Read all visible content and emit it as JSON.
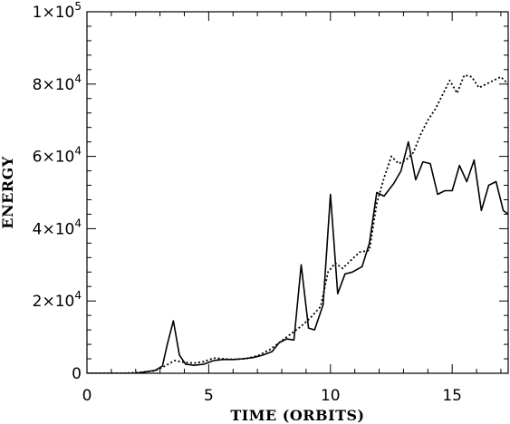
{
  "chart_data": {
    "type": "line",
    "title": "",
    "xlabel": "TIME (ORBITS)",
    "ylabel": "ENERGY",
    "xlim": [
      0,
      17.3
    ],
    "ylim": [
      0,
      100000
    ],
    "x_ticks": [
      0,
      5,
      10,
      15
    ],
    "x_tick_labels": [
      "0",
      "5",
      "10",
      "15"
    ],
    "y_ticks": [
      0,
      20000,
      40000,
      60000,
      80000,
      100000
    ],
    "y_tick_labels": [
      {
        "mantissa": "0",
        "exponent": ""
      },
      {
        "mantissa": "2×10",
        "exponent": "4"
      },
      {
        "mantissa": "4×10",
        "exponent": "4"
      },
      {
        "mantissa": "6×10",
        "exponent": "4"
      },
      {
        "mantissa": "8×10",
        "exponent": "4"
      },
      {
        "mantissa": "1×10",
        "exponent": "5"
      }
    ],
    "grid": false,
    "legend": "none",
    "series": [
      {
        "style": "solid",
        "color": "#000000",
        "points": [
          [
            0.0,
            0
          ],
          [
            1.0,
            0
          ],
          [
            2.0,
            0
          ],
          [
            2.5,
            500
          ],
          [
            2.8,
            800
          ],
          [
            3.1,
            2000
          ],
          [
            3.3,
            8000
          ],
          [
            3.55,
            14500
          ],
          [
            3.8,
            5000
          ],
          [
            4.05,
            2500
          ],
          [
            4.4,
            2200
          ],
          [
            4.8,
            2500
          ],
          [
            5.2,
            3500
          ],
          [
            5.6,
            3800
          ],
          [
            6.0,
            3800
          ],
          [
            6.4,
            4000
          ],
          [
            6.8,
            4300
          ],
          [
            7.2,
            5000
          ],
          [
            7.6,
            6000
          ],
          [
            7.9,
            8500
          ],
          [
            8.2,
            9500
          ],
          [
            8.5,
            9200
          ],
          [
            8.8,
            30000
          ],
          [
            9.1,
            12500
          ],
          [
            9.35,
            12000
          ],
          [
            9.7,
            19000
          ],
          [
            10.0,
            49500
          ],
          [
            10.3,
            22000
          ],
          [
            10.6,
            27500
          ],
          [
            10.9,
            28000
          ],
          [
            11.3,
            29500
          ],
          [
            11.6,
            36000
          ],
          [
            11.9,
            50000
          ],
          [
            12.2,
            49000
          ],
          [
            12.6,
            52500
          ],
          [
            12.9,
            56000
          ],
          [
            13.2,
            64000
          ],
          [
            13.5,
            53500
          ],
          [
            13.8,
            58500
          ],
          [
            14.1,
            58000
          ],
          [
            14.4,
            49500
          ],
          [
            14.7,
            50500
          ],
          [
            15.0,
            50500
          ],
          [
            15.3,
            57500
          ],
          [
            15.6,
            53000
          ],
          [
            15.9,
            59000
          ],
          [
            16.2,
            45000
          ],
          [
            16.5,
            52000
          ],
          [
            16.8,
            53000
          ],
          [
            17.1,
            45000
          ],
          [
            17.3,
            44000
          ]
        ]
      },
      {
        "style": "dotted",
        "color": "#000000",
        "points": [
          [
            0.0,
            0
          ],
          [
            1.5,
            0
          ],
          [
            2.3,
            300
          ],
          [
            2.8,
            700
          ],
          [
            3.2,
            2000
          ],
          [
            3.6,
            3500
          ],
          [
            4.0,
            3000
          ],
          [
            4.4,
            2800
          ],
          [
            4.8,
            3200
          ],
          [
            5.2,
            4200
          ],
          [
            5.6,
            4000
          ],
          [
            6.0,
            3800
          ],
          [
            6.5,
            4000
          ],
          [
            7.0,
            4800
          ],
          [
            7.5,
            6500
          ],
          [
            8.0,
            9000
          ],
          [
            8.4,
            11000
          ],
          [
            8.8,
            13000
          ],
          [
            9.2,
            15500
          ],
          [
            9.6,
            18500
          ],
          [
            9.9,
            28000
          ],
          [
            10.2,
            30500
          ],
          [
            10.5,
            29000
          ],
          [
            10.8,
            31000
          ],
          [
            11.2,
            33500
          ],
          [
            11.6,
            34000
          ],
          [
            11.9,
            47000
          ],
          [
            12.2,
            54000
          ],
          [
            12.5,
            60000
          ],
          [
            12.8,
            58000
          ],
          [
            13.1,
            59000
          ],
          [
            13.4,
            61000
          ],
          [
            13.7,
            66000
          ],
          [
            14.0,
            70000
          ],
          [
            14.3,
            73000
          ],
          [
            14.6,
            77000
          ],
          [
            14.9,
            81000
          ],
          [
            15.2,
            77500
          ],
          [
            15.5,
            82500
          ],
          [
            15.8,
            82000
          ],
          [
            16.1,
            79000
          ],
          [
            16.4,
            80000
          ],
          [
            16.7,
            81000
          ],
          [
            17.0,
            82000
          ],
          [
            17.3,
            80000
          ]
        ]
      }
    ]
  }
}
